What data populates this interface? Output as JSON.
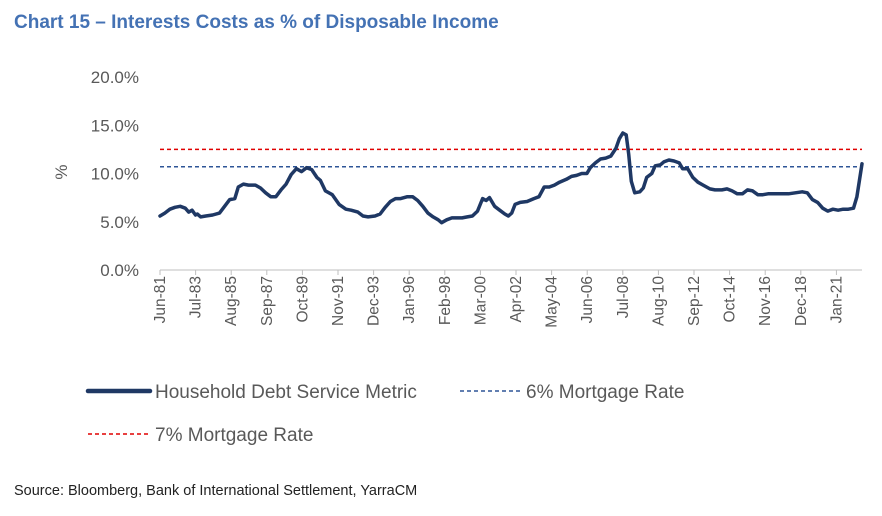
{
  "title": "Chart 15 – Interests Costs as % of Disposable Income",
  "source": "Source: Bloomberg, Bank of International Settlement, YarraCM",
  "colors": {
    "title": "#4472b4",
    "main_series": "#1f3864",
    "rate6": "#2e5597",
    "rate7": "#e00000",
    "axis": "#bfbfbf",
    "text": "#595959"
  },
  "chart_data": {
    "type": "line",
    "title": "Chart 15 – Interests Costs as % of Disposable Income",
    "xlabel": "",
    "ylabel": "%",
    "ylim": [
      0,
      20
    ],
    "yticks": [
      "0.0%",
      "5.0%",
      "10.0%",
      "15.0%",
      "20.0%"
    ],
    "xlim": [
      1981.42,
      2022.5
    ],
    "xticks": [
      "Jun-81",
      "Jul-83",
      "Aug-85",
      "Sep-87",
      "Oct-89",
      "Nov-91",
      "Dec-93",
      "Jan-96",
      "Feb-98",
      "Mar-00",
      "Apr-02",
      "May-04",
      "Jun-06",
      "Jul-08",
      "Aug-10",
      "Sep-12",
      "Oct-14",
      "Nov-16",
      "Dec-18",
      "Jan-21"
    ],
    "grid": false,
    "legend_position": "bottom",
    "series": [
      {
        "name": "Household Debt Service Metric",
        "style": "solid",
        "points": [
          [
            1981.42,
            5.6
          ],
          [
            1981.7,
            5.9
          ],
          [
            1982.0,
            6.3
          ],
          [
            1982.3,
            6.5
          ],
          [
            1982.6,
            6.6
          ],
          [
            1982.9,
            6.4
          ],
          [
            1983.1,
            6.0
          ],
          [
            1983.3,
            6.2
          ],
          [
            1983.5,
            5.7
          ],
          [
            1983.6,
            5.8
          ],
          [
            1983.8,
            5.5
          ],
          [
            1984.1,
            5.6
          ],
          [
            1984.5,
            5.7
          ],
          [
            1984.9,
            5.9
          ],
          [
            1985.2,
            6.6
          ],
          [
            1985.5,
            7.3
          ],
          [
            1985.8,
            7.4
          ],
          [
            1986.0,
            8.6
          ],
          [
            1986.3,
            8.9
          ],
          [
            1986.6,
            8.8
          ],
          [
            1987.0,
            8.8
          ],
          [
            1987.3,
            8.5
          ],
          [
            1987.6,
            8.0
          ],
          [
            1987.9,
            7.6
          ],
          [
            1988.2,
            7.6
          ],
          [
            1988.5,
            8.3
          ],
          [
            1988.8,
            8.9
          ],
          [
            1989.1,
            9.9
          ],
          [
            1989.4,
            10.5
          ],
          [
            1989.7,
            10.2
          ],
          [
            1990.0,
            10.6
          ],
          [
            1990.3,
            10.4
          ],
          [
            1990.6,
            9.6
          ],
          [
            1990.8,
            9.3
          ],
          [
            1991.1,
            8.2
          ],
          [
            1991.5,
            7.8
          ],
          [
            1991.9,
            6.8
          ],
          [
            1992.3,
            6.3
          ],
          [
            1992.6,
            6.2
          ],
          [
            1993.0,
            6.0
          ],
          [
            1993.3,
            5.6
          ],
          [
            1993.6,
            5.5
          ],
          [
            1994.0,
            5.6
          ],
          [
            1994.3,
            5.8
          ],
          [
            1994.6,
            6.5
          ],
          [
            1994.9,
            7.1
          ],
          [
            1995.2,
            7.4
          ],
          [
            1995.5,
            7.4
          ],
          [
            1995.9,
            7.6
          ],
          [
            1996.2,
            7.6
          ],
          [
            1996.5,
            7.2
          ],
          [
            1996.8,
            6.6
          ],
          [
            1997.1,
            5.9
          ],
          [
            1997.4,
            5.5
          ],
          [
            1997.7,
            5.2
          ],
          [
            1997.9,
            4.9
          ],
          [
            1998.2,
            5.2
          ],
          [
            1998.5,
            5.4
          ],
          [
            1998.8,
            5.4
          ],
          [
            1999.1,
            5.4
          ],
          [
            1999.4,
            5.5
          ],
          [
            1999.7,
            5.6
          ],
          [
            2000.0,
            6.1
          ],
          [
            2000.3,
            7.4
          ],
          [
            2000.5,
            7.2
          ],
          [
            2000.7,
            7.5
          ],
          [
            2001.0,
            6.6
          ],
          [
            2001.3,
            6.2
          ],
          [
            2001.6,
            5.8
          ],
          [
            2001.8,
            5.6
          ],
          [
            2002.0,
            5.9
          ],
          [
            2002.2,
            6.8
          ],
          [
            2002.5,
            7.0
          ],
          [
            2002.9,
            7.1
          ],
          [
            2003.3,
            7.4
          ],
          [
            2003.6,
            7.6
          ],
          [
            2003.9,
            8.6
          ],
          [
            2004.2,
            8.6
          ],
          [
            2004.5,
            8.8
          ],
          [
            2004.8,
            9.1
          ],
          [
            2005.2,
            9.4
          ],
          [
            2005.5,
            9.7
          ],
          [
            2005.8,
            9.8
          ],
          [
            2006.1,
            10.0
          ],
          [
            2006.4,
            10.0
          ],
          [
            2006.6,
            10.6
          ],
          [
            2006.9,
            11.1
          ],
          [
            2007.2,
            11.5
          ],
          [
            2007.5,
            11.6
          ],
          [
            2007.8,
            11.8
          ],
          [
            2008.1,
            12.6
          ],
          [
            2008.3,
            13.6
          ],
          [
            2008.5,
            14.2
          ],
          [
            2008.7,
            14.0
          ],
          [
            2008.85,
            12.0
          ],
          [
            2009.0,
            9.2
          ],
          [
            2009.2,
            8.0
          ],
          [
            2009.5,
            8.1
          ],
          [
            2009.7,
            8.5
          ],
          [
            2009.9,
            9.6
          ],
          [
            2010.2,
            10.0
          ],
          [
            2010.4,
            10.8
          ],
          [
            2010.7,
            10.9
          ],
          [
            2010.9,
            11.2
          ],
          [
            2011.2,
            11.4
          ],
          [
            2011.5,
            11.3
          ],
          [
            2011.8,
            11.1
          ],
          [
            2012.0,
            10.5
          ],
          [
            2012.3,
            10.5
          ],
          [
            2012.6,
            9.6
          ],
          [
            2012.9,
            9.1
          ],
          [
            2013.2,
            8.8
          ],
          [
            2013.6,
            8.4
          ],
          [
            2013.9,
            8.3
          ],
          [
            2014.3,
            8.3
          ],
          [
            2014.6,
            8.4
          ],
          [
            2014.9,
            8.2
          ],
          [
            2015.2,
            7.9
          ],
          [
            2015.5,
            7.9
          ],
          [
            2015.8,
            8.3
          ],
          [
            2016.1,
            8.2
          ],
          [
            2016.4,
            7.8
          ],
          [
            2016.7,
            7.8
          ],
          [
            2017.0,
            7.9
          ],
          [
            2017.4,
            7.9
          ],
          [
            2017.8,
            7.9
          ],
          [
            2018.2,
            7.9
          ],
          [
            2018.6,
            8.0
          ],
          [
            2019.0,
            8.1
          ],
          [
            2019.3,
            8.0
          ],
          [
            2019.6,
            7.3
          ],
          [
            2019.9,
            7.0
          ],
          [
            2020.2,
            6.4
          ],
          [
            2020.5,
            6.1
          ],
          [
            2020.8,
            6.3
          ],
          [
            2021.1,
            6.2
          ],
          [
            2021.4,
            6.3
          ],
          [
            2021.7,
            6.3
          ],
          [
            2022.0,
            6.4
          ],
          [
            2022.2,
            7.6
          ],
          [
            2022.5,
            11.0
          ]
        ]
      },
      {
        "name": "6% Mortgage Rate",
        "style": "dashed",
        "constant": 10.7
      },
      {
        "name": "7% Mortgage Rate",
        "style": "dashed",
        "constant": 12.5
      }
    ]
  }
}
